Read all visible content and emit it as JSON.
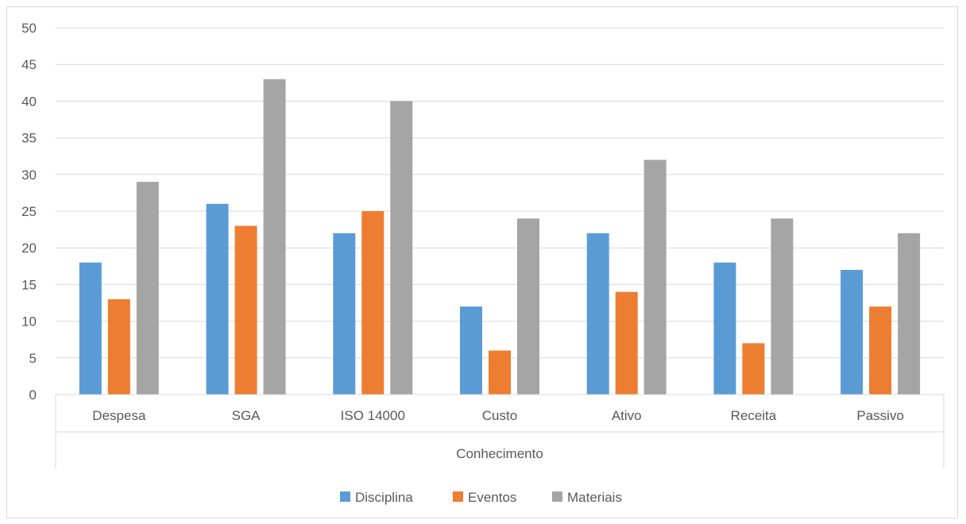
{
  "chart_data": {
    "type": "bar",
    "title": "",
    "xlabel": "Conhecimento",
    "ylabel": "",
    "ylim": [
      0,
      50
    ],
    "yticks": [
      0,
      5,
      10,
      15,
      20,
      25,
      30,
      35,
      40,
      45,
      50
    ],
    "grid": true,
    "legend": "bottom",
    "categories": [
      "Despesa",
      "SGA",
      "ISO 14000",
      "Custo",
      "Ativo",
      "Receita",
      "Passivo"
    ],
    "series": [
      {
        "name": "Disciplina",
        "color": "#5b9bd5",
        "values": [
          18,
          26,
          22,
          12,
          22,
          18,
          17
        ]
      },
      {
        "name": "Eventos",
        "color": "#ed7d31",
        "values": [
          13,
          23,
          25,
          6,
          14,
          7,
          12
        ]
      },
      {
        "name": "Materiais",
        "color": "#a5a5a5",
        "values": [
          29,
          43,
          40,
          24,
          32,
          24,
          22
        ]
      }
    ]
  }
}
